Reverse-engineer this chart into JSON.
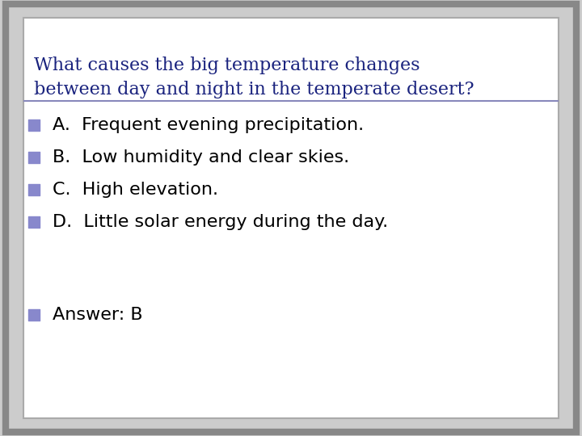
{
  "title_line1": "What causes the big temperature changes",
  "title_line2": "between day and night in the temperate desert?",
  "title_color": "#1a237e",
  "title_fontsize": 16,
  "options": [
    "A.  Frequent evening precipitation.",
    "B.  Low humidity and clear skies.",
    "C.  High elevation.",
    "D.  Little solar energy during the day."
  ],
  "answer": "Answer: B",
  "option_fontsize": 16,
  "answer_fontsize": 16,
  "bullet_color": "#8888cc",
  "text_color": "#000000",
  "bg_color": "#ffffff",
  "border_color": "#888888",
  "border_color2": "#aaaaaa",
  "line_color": "#8888bb",
  "outer_bg": "#cccccc"
}
